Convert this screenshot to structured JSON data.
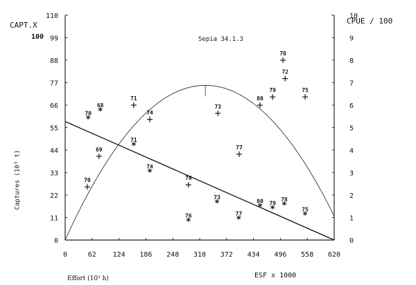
{
  "chart_data": {
    "type": "scatter",
    "title": "Sepia 34.1.3",
    "xlabel": "Effort (10³ h)",
    "xlabel_secondary": "ESF x 1000",
    "ylabel": "Captures (10³ t)",
    "ylabel_left_header": "CAPT.X",
    "ylabel_left_header2": "100",
    "ylabel_right": "CPUE / 100",
    "xlim": [
      0,
      620
    ],
    "ylim_left": [
      0,
      110
    ],
    "ylim_right": [
      0,
      10
    ],
    "x_ticks": [
      "0",
      "62",
      "124",
      "186",
      "248",
      "310",
      "372",
      "434",
      "496",
      "558",
      "620"
    ],
    "y_ticks_left": [
      "0",
      "11",
      "22",
      "33",
      "44",
      "55",
      "66",
      "77",
      "88",
      "99",
      "110"
    ],
    "y_ticks_right": [
      "0",
      "1",
      "2",
      "3",
      "4",
      "5",
      "6",
      "7",
      "8",
      "9",
      "10"
    ],
    "grid": false,
    "series": [
      {
        "name": "Captures (+)",
        "marker": "+",
        "points": [
          {
            "year": "70",
            "x": 51,
            "y": 26
          },
          {
            "year": "69",
            "x": 78,
            "y": 41
          },
          {
            "year": "71",
            "x": 158,
            "y": 66
          },
          {
            "year": "74",
            "x": 195,
            "y": 59
          },
          {
            "year": "76",
            "x": 284,
            "y": 27
          },
          {
            "year": "73",
            "x": 352,
            "y": 62
          },
          {
            "year": "77",
            "x": 401,
            "y": 42
          },
          {
            "year": "80",
            "x": 449,
            "y": 66
          },
          {
            "year": "79",
            "x": 478,
            "y": 70
          },
          {
            "year": "78",
            "x": 502,
            "y": 88
          },
          {
            "year": "72",
            "x": 507,
            "y": 79
          },
          {
            "year": "75",
            "x": 553,
            "y": 70
          }
        ]
      },
      {
        "name": "CPUE (*)",
        "marker": "*",
        "points": [
          {
            "year": "70",
            "x": 53,
            "y": 59
          },
          {
            "year": "68",
            "x": 81,
            "y": 63
          },
          {
            "year": "71",
            "x": 158,
            "y": 46
          },
          {
            "year": "74",
            "x": 195,
            "y": 33
          },
          {
            "year": "76",
            "x": 284,
            "y": 9
          },
          {
            "year": "73",
            "x": 350,
            "y": 18
          },
          {
            "year": "77",
            "x": 400,
            "y": 10
          },
          {
            "year": "80",
            "x": 449,
            "y": 16
          },
          {
            "year": "79",
            "x": 478,
            "y": 15
          },
          {
            "year": "78",
            "x": 505,
            "y": 17
          },
          {
            "year": "75",
            "x": 553,
            "y": 12
          }
        ]
      },
      {
        "name": "CPUE linear fit",
        "type": "line",
        "x": [
          0,
          620
        ],
        "y": [
          58,
          0
        ]
      },
      {
        "name": "Surplus production parabola",
        "type": "line",
        "x": [
          0,
          62,
          124,
          186,
          248,
          323,
          372,
          434,
          496,
          558,
          620
        ],
        "y": [
          0,
          25,
          45,
          60,
          71,
          75.7,
          73,
          65,
          52,
          34,
          6
        ]
      }
    ],
    "annotations": [
      "Sepia 34.1.3"
    ]
  }
}
